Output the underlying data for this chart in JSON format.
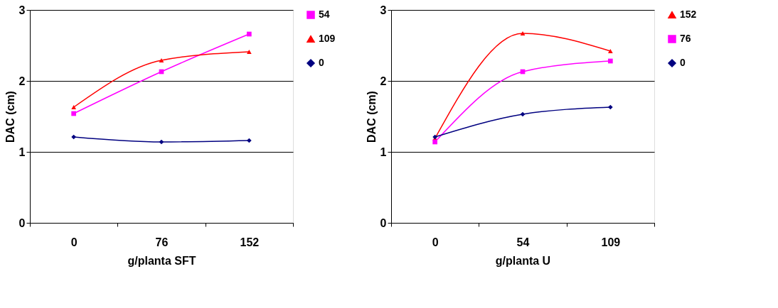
{
  "chart_data": [
    {
      "type": "line",
      "xlabel": "g/planta SFT",
      "ylabel": "DAC (cm)",
      "categories": [
        "0",
        "76",
        "152"
      ],
      "ylim": [
        0,
        3
      ],
      "yticks": [
        0,
        1,
        2,
        3
      ],
      "grid": "y",
      "legend": "right",
      "series": [
        {
          "name": "54",
          "color": "#ff00ff",
          "marker": "square",
          "values": [
            1.54,
            2.13,
            2.66
          ]
        },
        {
          "name": "109",
          "color": "#ff0000",
          "marker": "triangle",
          "values": [
            1.63,
            2.29,
            2.41
          ]
        },
        {
          "name": "0",
          "color": "#000080",
          "marker": "diamond",
          "values": [
            1.21,
            1.14,
            1.16
          ]
        }
      ]
    },
    {
      "type": "line",
      "xlabel": "g/planta U",
      "ylabel": "DAC (cm)",
      "categories": [
        "0",
        "54",
        "109"
      ],
      "ylim": [
        0,
        3
      ],
      "yticks": [
        0,
        1,
        2,
        3
      ],
      "grid": "y",
      "legend": "right",
      "series": [
        {
          "name": "152",
          "color": "#ff0000",
          "marker": "triangle",
          "values": [
            1.19,
            2.67,
            2.42
          ]
        },
        {
          "name": "76",
          "color": "#ff00ff",
          "marker": "square",
          "values": [
            1.14,
            2.13,
            2.28
          ]
        },
        {
          "name": "0",
          "color": "#000080",
          "marker": "diamond",
          "values": [
            1.21,
            1.53,
            1.63
          ]
        }
      ]
    }
  ]
}
